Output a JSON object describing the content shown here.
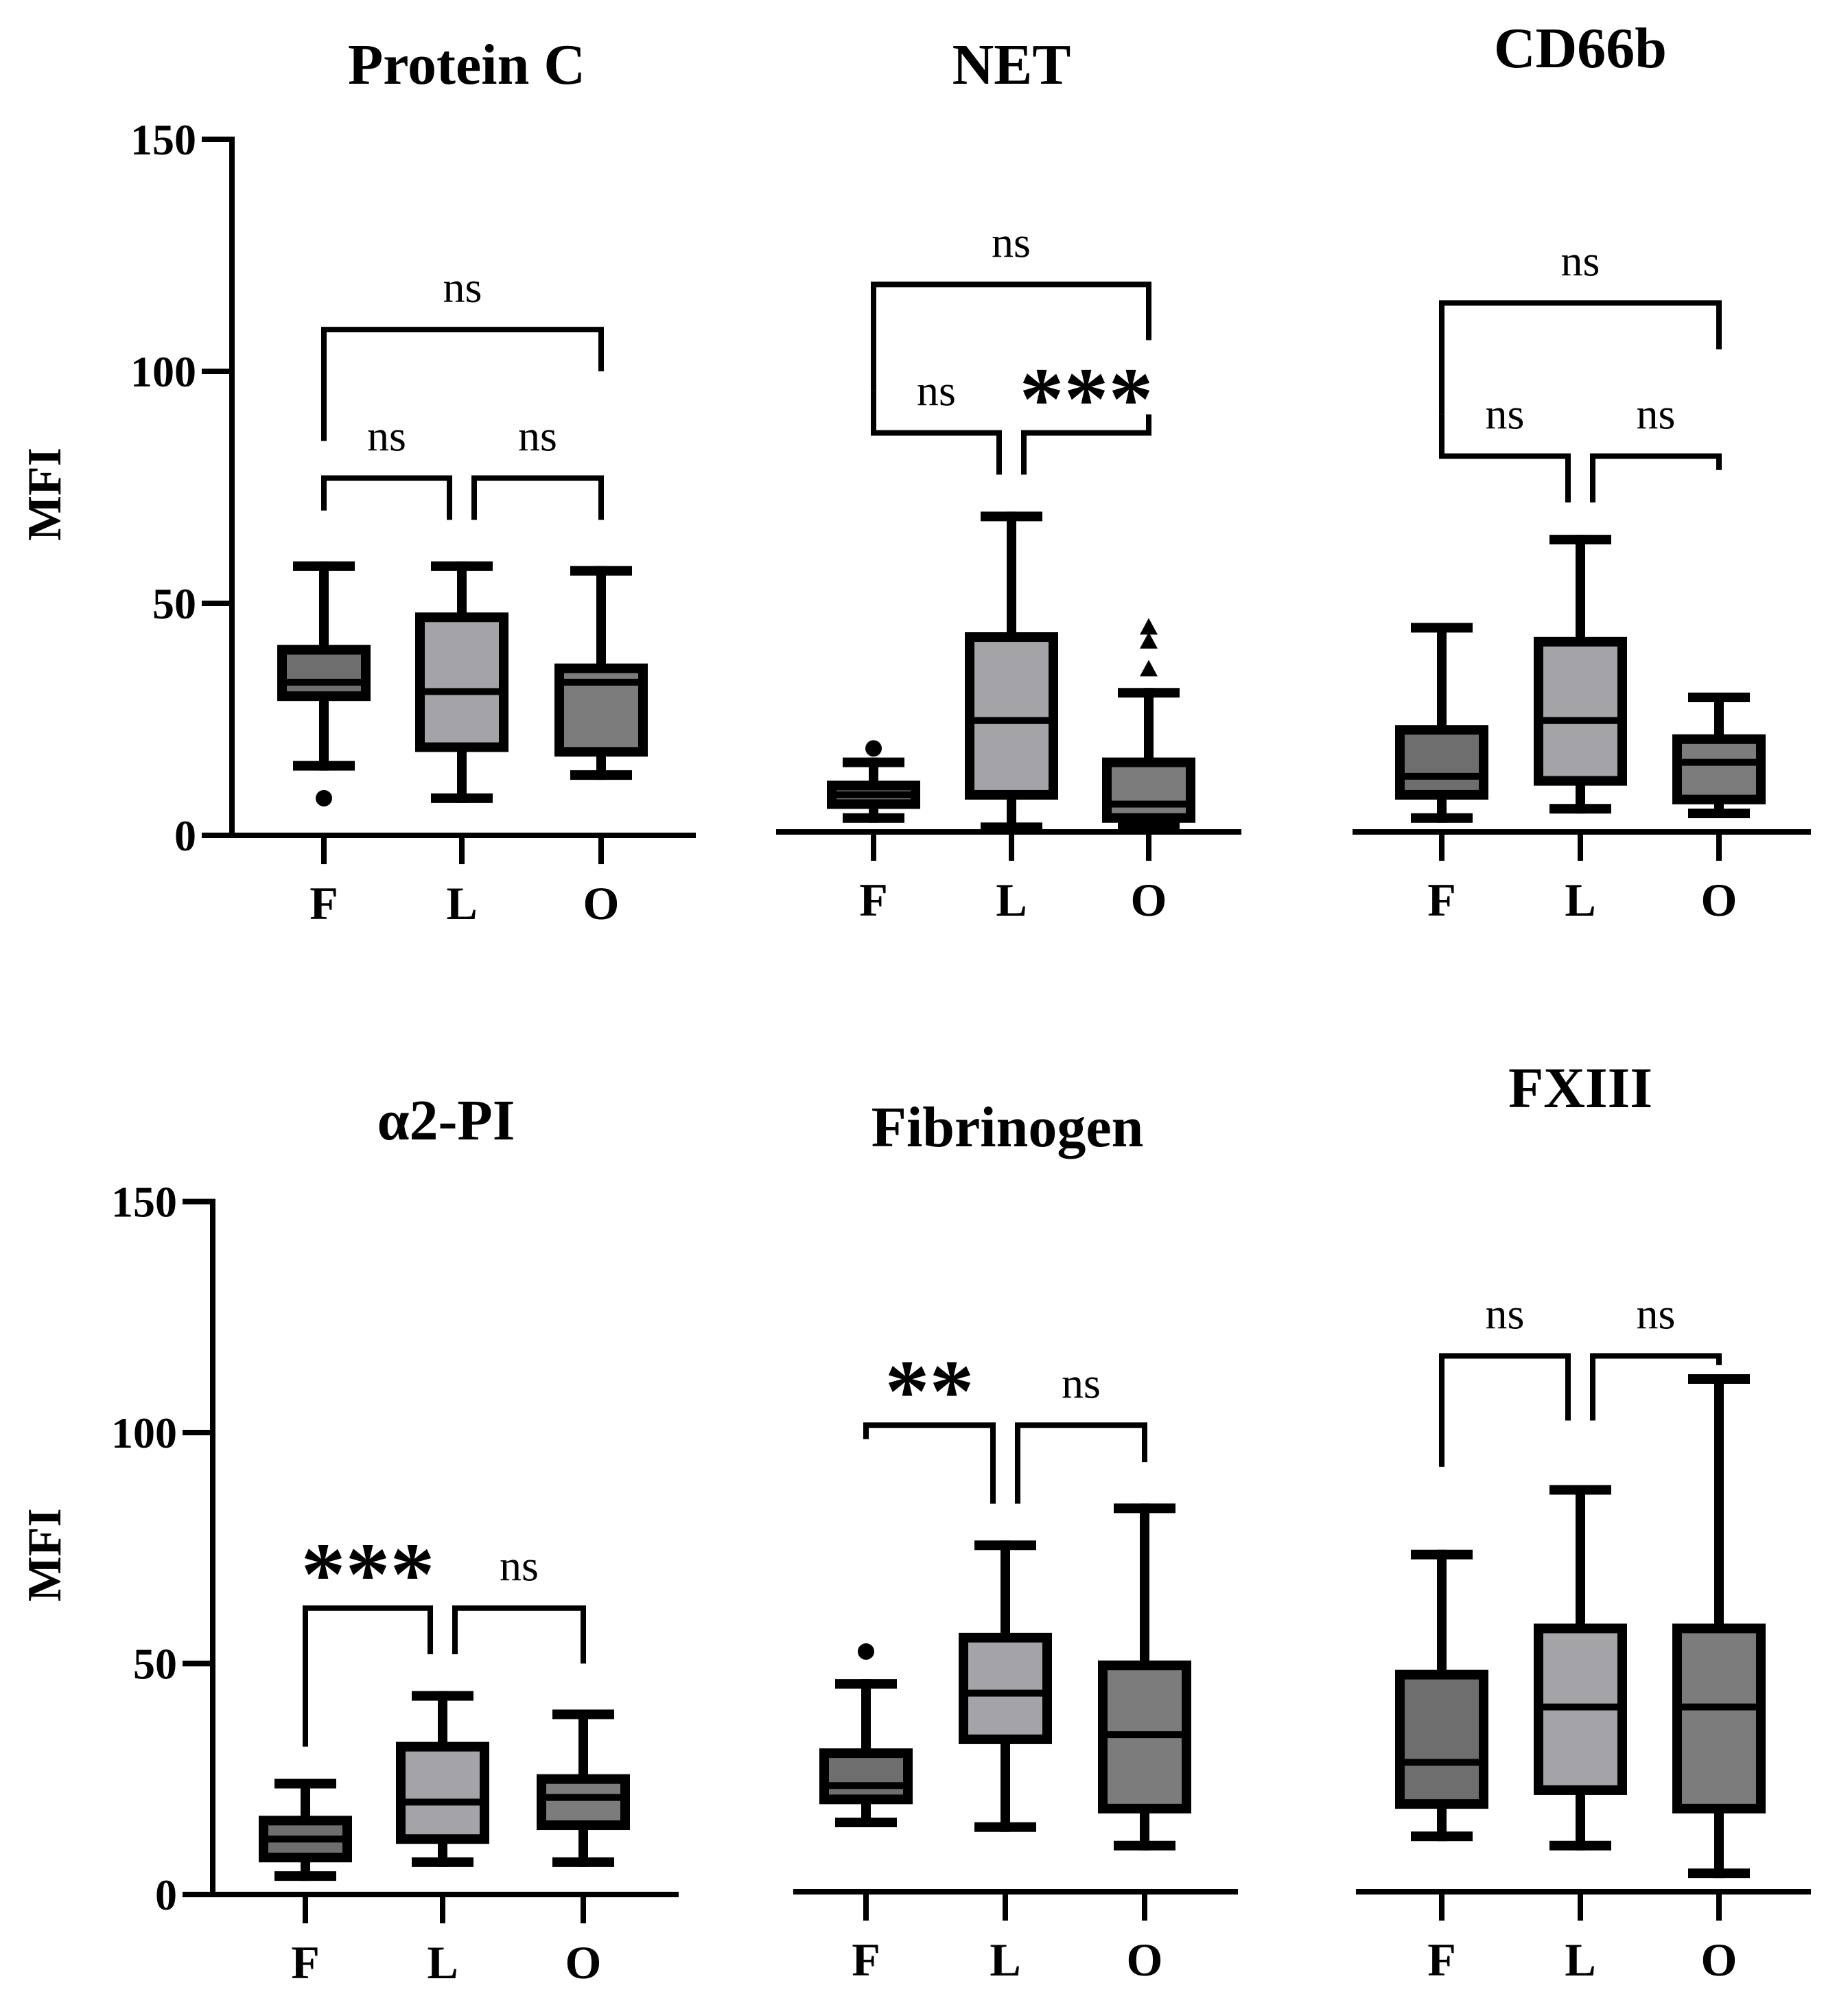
{
  "chart_data": [
    {
      "type": "box",
      "title": "Protein C",
      "ylabel": "MFI",
      "ylim": [
        0,
        150
      ],
      "yticks": [
        0,
        50,
        100,
        150
      ],
      "show_y_axis": true,
      "categories": [
        "F",
        "L",
        "O"
      ],
      "colors": [
        "#6e6e6e",
        "#a4a4a8",
        "#7c7c7c"
      ],
      "boxes": [
        {
          "group": "F",
          "min": 15,
          "q1": 30,
          "median": 33,
          "q3": 40,
          "max": 58,
          "outliers": [
            {
              "value": 8,
              "marker": "circle"
            }
          ]
        },
        {
          "group": "L",
          "min": 8,
          "q1": 19,
          "median": 31,
          "q3": 47,
          "max": 58,
          "outliers": []
        },
        {
          "group": "O",
          "min": 13,
          "q1": 18,
          "median": 33,
          "q3": 36,
          "max": 57,
          "outliers": []
        }
      ],
      "comparisons": [
        {
          "from": "F",
          "to": "L",
          "label": "ns",
          "left_drop": 70,
          "right_drop": 68,
          "top": 77
        },
        {
          "from": "L",
          "to": "O",
          "label": "ns",
          "left_drop": 68,
          "right_drop": 68,
          "top": 77
        },
        {
          "from": "F",
          "to": "O",
          "label": "ns",
          "left_drop": 85,
          "right_drop": 100,
          "top": 109
        }
      ]
    },
    {
      "type": "box",
      "title": "NET",
      "ylabel": "",
      "ylim": [
        0,
        150
      ],
      "yticks": [],
      "show_y_axis": false,
      "categories": [
        "F",
        "L",
        "O"
      ],
      "colors": [
        "#6e6e6e",
        "#a4a4a8",
        "#7c7c7c"
      ],
      "boxes": [
        {
          "group": "F",
          "min": 3,
          "q1": 6,
          "median": 8,
          "q3": 10,
          "max": 15,
          "outliers": [
            {
              "value": 18,
              "marker": "circle"
            }
          ]
        },
        {
          "group": "L",
          "min": 1,
          "q1": 8,
          "median": 24,
          "q3": 42,
          "max": 68,
          "outliers": []
        },
        {
          "group": "O",
          "min": 1,
          "q1": 3,
          "median": 6,
          "q3": 15,
          "max": 30,
          "outliers": [
            {
              "value": 35,
              "marker": "triangle"
            },
            {
              "value": 41,
              "marker": "triangle"
            },
            {
              "value": 44,
              "marker": "triangle"
            }
          ]
        }
      ],
      "comparisons": [
        {
          "from": "F",
          "to": "L",
          "label": "ns",
          "left_drop": 95,
          "right_drop": 77,
          "top": 86
        },
        {
          "from": "L",
          "to": "O",
          "label": "***",
          "left_drop": 77,
          "right_drop": 90,
          "top": 86
        },
        {
          "from": "F",
          "to": "O",
          "label": "ns",
          "left_drop": 95,
          "right_drop": 106,
          "top": 118
        }
      ]
    },
    {
      "type": "box",
      "title": "CD66b",
      "ylabel": "",
      "ylim": [
        0,
        150
      ],
      "yticks": [],
      "show_y_axis": false,
      "categories": [
        "F",
        "L",
        "O"
      ],
      "colors": [
        "#6e6e6e",
        "#a4a4a8",
        "#7c7c7c"
      ],
      "boxes": [
        {
          "group": "F",
          "min": 3,
          "q1": 8,
          "median": 12,
          "q3": 22,
          "max": 44,
          "outliers": []
        },
        {
          "group": "L",
          "min": 5,
          "q1": 11,
          "median": 24,
          "q3": 41,
          "max": 63,
          "outliers": []
        },
        {
          "group": "O",
          "min": 4,
          "q1": 7,
          "median": 15,
          "q3": 20,
          "max": 29,
          "outliers": []
        }
      ],
      "comparisons": [
        {
          "from": "F",
          "to": "L",
          "label": "ns",
          "left_drop": 90,
          "right_drop": 71,
          "top": 81
        },
        {
          "from": "L",
          "to": "O",
          "label": "ns",
          "left_drop": 71,
          "right_drop": 78,
          "top": 81
        },
        {
          "from": "F",
          "to": "O",
          "label": "ns",
          "left_drop": 90,
          "right_drop": 104,
          "top": 114
        }
      ]
    },
    {
      "type": "box",
      "title": "α2-PI",
      "ylabel": "MFI",
      "ylim": [
        0,
        150
      ],
      "yticks": [
        0,
        50,
        100,
        150
      ],
      "show_y_axis": true,
      "categories": [
        "F",
        "L",
        "O"
      ],
      "colors": [
        "#6e6e6e",
        "#a4a4a8",
        "#7c7c7c"
      ],
      "boxes": [
        {
          "group": "F",
          "min": 4,
          "q1": 8,
          "median": 12,
          "q3": 16,
          "max": 24,
          "outliers": []
        },
        {
          "group": "L",
          "min": 7,
          "q1": 12,
          "median": 20,
          "q3": 32,
          "max": 43,
          "outliers": []
        },
        {
          "group": "O",
          "min": 7,
          "q1": 15,
          "median": 21,
          "q3": 25,
          "max": 39,
          "outliers": []
        }
      ],
      "comparisons": [
        {
          "from": "F",
          "to": "L",
          "label": "***",
          "left_drop": 32,
          "right_drop": 52,
          "top": 62
        },
        {
          "from": "L",
          "to": "O",
          "label": "ns",
          "left_drop": 52,
          "right_drop": 50,
          "top": 62
        }
      ]
    },
    {
      "type": "box",
      "title": "Fibrinogen",
      "ylabel": "",
      "ylim": [
        0,
        150
      ],
      "yticks": [],
      "show_y_axis": false,
      "categories": [
        "F",
        "L",
        "O"
      ],
      "colors": [
        "#6e6e6e",
        "#a4a4a8",
        "#7c7c7c"
      ],
      "boxes": [
        {
          "group": "F",
          "min": 15,
          "q1": 20,
          "median": 23,
          "q3": 30,
          "max": 45,
          "outliers": [
            {
              "value": 52,
              "marker": "circle"
            }
          ]
        },
        {
          "group": "L",
          "min": 14,
          "q1": 33,
          "median": 43,
          "q3": 55,
          "max": 75,
          "outliers": []
        },
        {
          "group": "O",
          "min": 10,
          "q1": 18,
          "median": 34,
          "q3": 49,
          "max": 83,
          "outliers": []
        }
      ],
      "comparisons": [
        {
          "from": "F",
          "to": "L",
          "label": "**",
          "left_drop": 98,
          "right_drop": 84,
          "top": 101
        },
        {
          "from": "L",
          "to": "O",
          "label": "ns",
          "left_drop": 84,
          "right_drop": 93,
          "top": 101
        }
      ]
    },
    {
      "type": "box",
      "title": "FXIII",
      "ylabel": "",
      "ylim": [
        0,
        150
      ],
      "yticks": [],
      "show_y_axis": false,
      "categories": [
        "F",
        "L",
        "O"
      ],
      "colors": [
        "#6e6e6e",
        "#a4a4a8",
        "#7c7c7c"
      ],
      "boxes": [
        {
          "group": "F",
          "min": 12,
          "q1": 19,
          "median": 28,
          "q3": 47,
          "max": 73,
          "outliers": []
        },
        {
          "group": "L",
          "min": 10,
          "q1": 22,
          "median": 40,
          "q3": 57,
          "max": 87,
          "outliers": []
        },
        {
          "group": "O",
          "min": 4,
          "q1": 18,
          "median": 40,
          "q3": 57,
          "max": 111,
          "outliers": []
        }
      ],
      "comparisons": [
        {
          "from": "F",
          "to": "L",
          "label": "ns",
          "left_drop": 92,
          "right_drop": 102,
          "top": 116
        },
        {
          "from": "L",
          "to": "O",
          "label": "ns",
          "left_drop": 102,
          "right_drop": 114,
          "top": 116
        }
      ]
    }
  ]
}
